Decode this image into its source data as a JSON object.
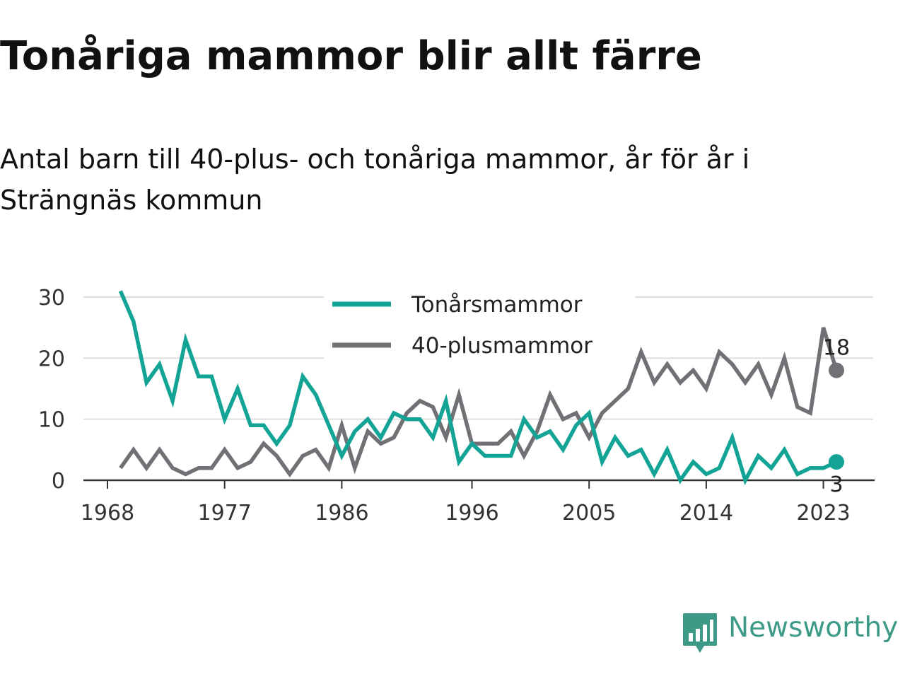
{
  "header": {
    "title": "Tonåriga mammor blir allt färre",
    "subtitle": "Antal barn till 40-plus- och tonåriga mammor, år för år i Strängnäs kommun"
  },
  "brand": {
    "name": "Newsworthy",
    "logo_icon": "bar-chart-speech-bubble-icon",
    "color": "#3d9a87"
  },
  "chart_data": {
    "type": "line",
    "x": [
      1969,
      1970,
      1971,
      1972,
      1973,
      1974,
      1975,
      1976,
      1977,
      1978,
      1979,
      1980,
      1981,
      1982,
      1983,
      1984,
      1985,
      1986,
      1987,
      1988,
      1989,
      1990,
      1991,
      1992,
      1993,
      1994,
      1995,
      1996,
      1997,
      1998,
      1999,
      2000,
      2001,
      2002,
      2003,
      2004,
      2005,
      2006,
      2007,
      2008,
      2009,
      2010,
      2011,
      2012,
      2013,
      2014,
      2015,
      2016,
      2017,
      2018,
      2019,
      2020,
      2021,
      2022,
      2023,
      2024
    ],
    "series": [
      {
        "name": "Tonårsmammor",
        "color": "#13a496",
        "values": [
          31,
          26,
          16,
          19,
          13,
          23,
          17,
          17,
          10,
          15,
          9,
          9,
          6,
          9,
          17,
          14,
          9,
          4,
          8,
          10,
          7,
          11,
          10,
          10,
          7,
          13,
          3,
          6,
          4,
          4,
          4,
          10,
          7,
          8,
          5,
          9,
          11,
          3,
          7,
          4,
          5,
          1,
          5,
          0,
          3,
          1,
          2,
          7,
          0,
          4,
          2,
          5,
          1,
          2,
          2,
          3
        ],
        "end_label": "3"
      },
      {
        "name": "40-plusmammor",
        "color": "#717075",
        "values": [
          2,
          5,
          2,
          5,
          2,
          1,
          2,
          2,
          5,
          2,
          3,
          6,
          4,
          1,
          4,
          5,
          2,
          9,
          2,
          8,
          6,
          7,
          11,
          13,
          12,
          7,
          14,
          6,
          6,
          6,
          8,
          4,
          8,
          14,
          10,
          11,
          7,
          11,
          13,
          15,
          21,
          16,
          19,
          16,
          18,
          15,
          21,
          19,
          16,
          19,
          14,
          20,
          12,
          11,
          25,
          18
        ],
        "end_label": "18"
      }
    ],
    "x_ticks": [
      1968,
      1977,
      1986,
      1996,
      2005,
      2014,
      2023
    ],
    "x_tick_labels": [
      "1968",
      "1977",
      "1986",
      "1996",
      "2005",
      "2014",
      "2023"
    ],
    "y_ticks": [
      0,
      10,
      20,
      30
    ],
    "y_tick_labels": [
      "0",
      "10",
      "20",
      "30"
    ],
    "xlim": [
      1968,
      2024
    ],
    "ylim": [
      0,
      30
    ],
    "xlabel": "",
    "ylabel": "",
    "grid": "horizontal",
    "legend_position": "top-center",
    "gridline_color": "#dddddd",
    "axis_color": "#333333"
  }
}
